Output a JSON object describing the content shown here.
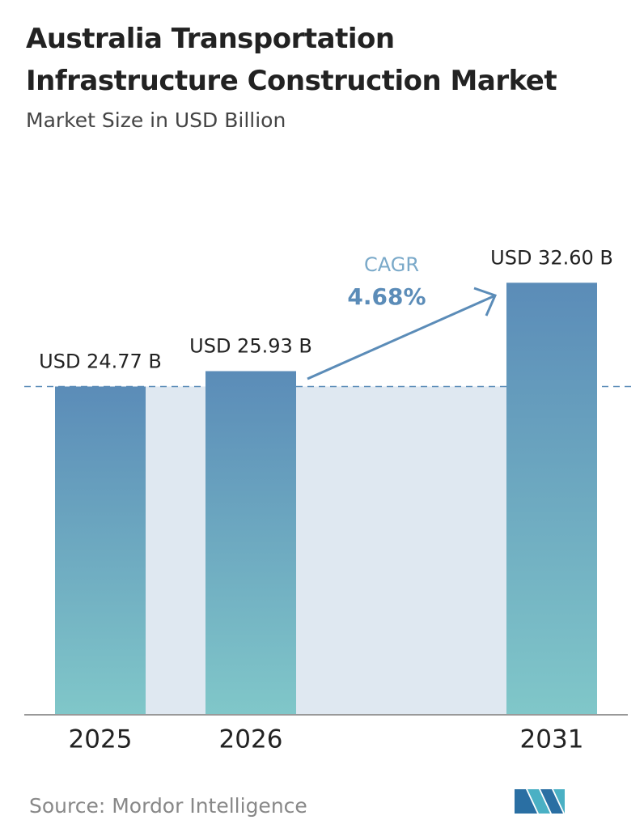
{
  "chart_data": {
    "type": "bar",
    "title": "Australia Transportation Infrastructure Construction Market",
    "subtitle": "Market Size in USD Billion",
    "categories": [
      "2025",
      "2026",
      "2031"
    ],
    "values": [
      24.77,
      25.93,
      32.6
    ],
    "value_labels": [
      "USD 24.77 B",
      "USD 25.93 B",
      "USD 32.60 B"
    ],
    "ylim": [
      0,
      35
    ],
    "colors": [
      "#5b8cb8",
      "#80c7c9"
    ],
    "annotation": {
      "label": "CAGR",
      "value": "4.68%"
    },
    "source": "Source:  Mordor Intelligence"
  }
}
